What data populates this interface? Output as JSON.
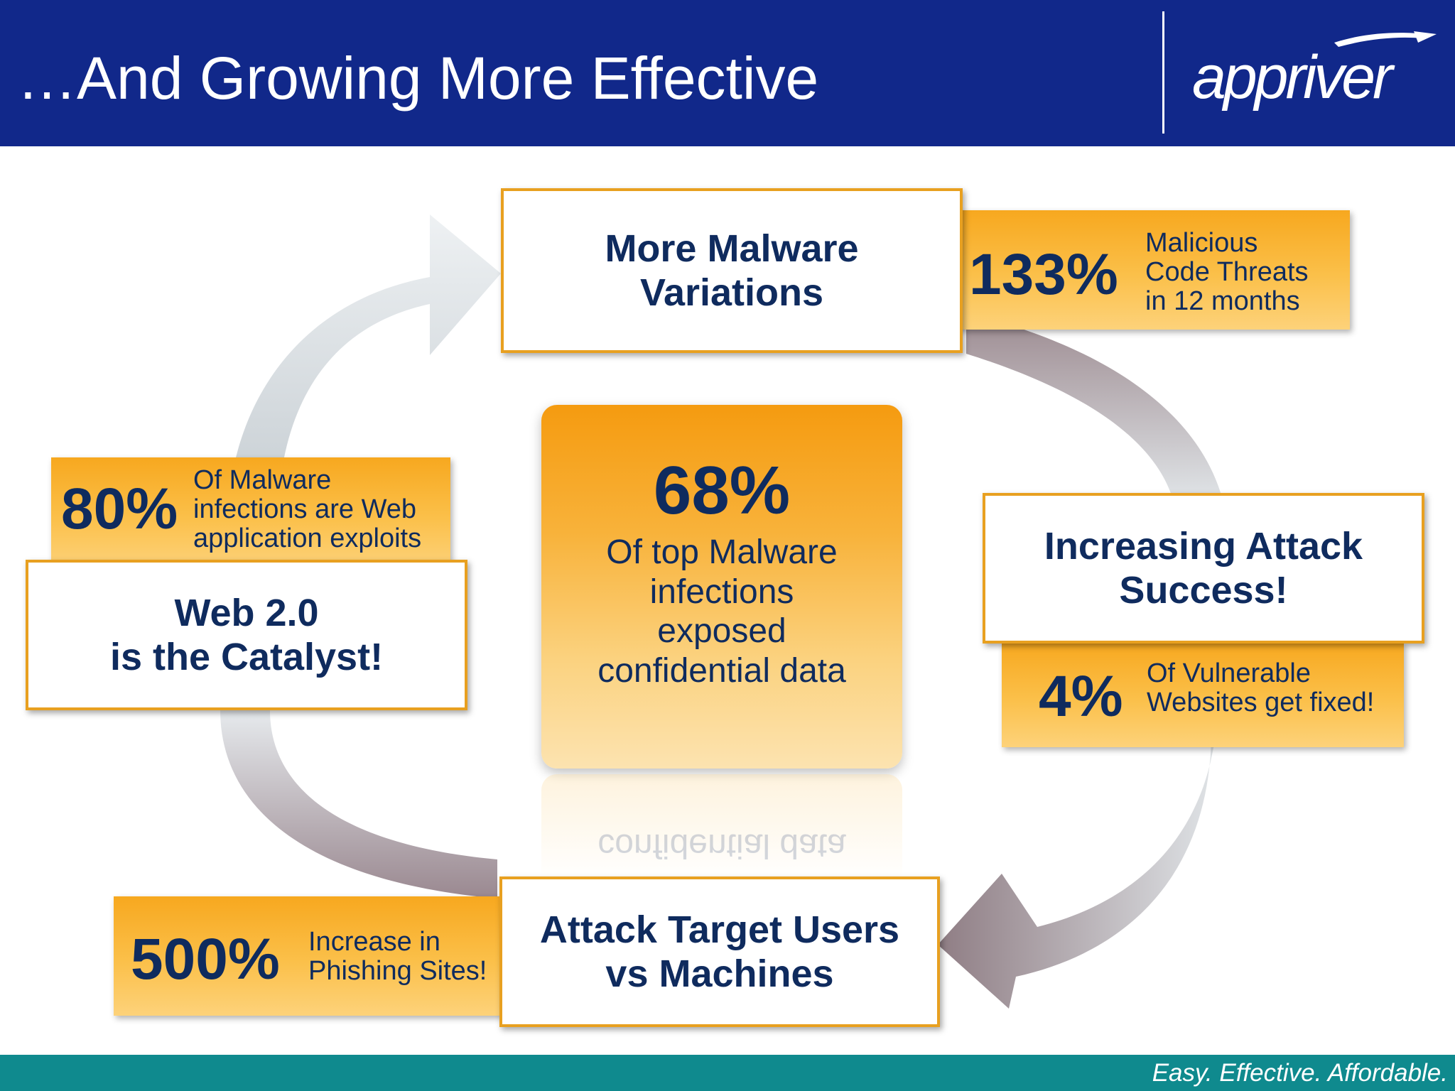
{
  "header": {
    "title": "…And Growing More Effective",
    "logo_text": "appriver"
  },
  "footer": {
    "tagline": "Easy. Effective. Affordable."
  },
  "colors": {
    "header_bg": "#11288a",
    "footer_bg": "#0f8a8e",
    "text_navy": "#0f2b5e",
    "accent_orange": "#f7a81f"
  },
  "cycle": {
    "top": {
      "title": "More Malware Variations",
      "stat_value": "133%",
      "stat_text": [
        "Malicious",
        "Code Threats",
        "in 12 months"
      ]
    },
    "right": {
      "title": "Increasing Attack Success!",
      "stat_value": "4%",
      "stat_text": [
        "Of Vulnerable",
        "Websites get fixed!"
      ]
    },
    "bottom": {
      "title": "Attack Target Users vs Machines",
      "stat_value": "500%",
      "stat_text": [
        "Increase in",
        "Phishing Sites!"
      ]
    },
    "left": {
      "title_line1": "Web 2.0",
      "title_line2": "is the Catalyst!",
      "stat_value": "80%",
      "stat_text": [
        "Of Malware",
        "infections are Web",
        "application exploits"
      ]
    }
  },
  "center": {
    "value": "68%",
    "text": [
      "Of top Malware",
      "infections",
      "exposed",
      "confidential data"
    ],
    "reflection": "confidential data"
  }
}
